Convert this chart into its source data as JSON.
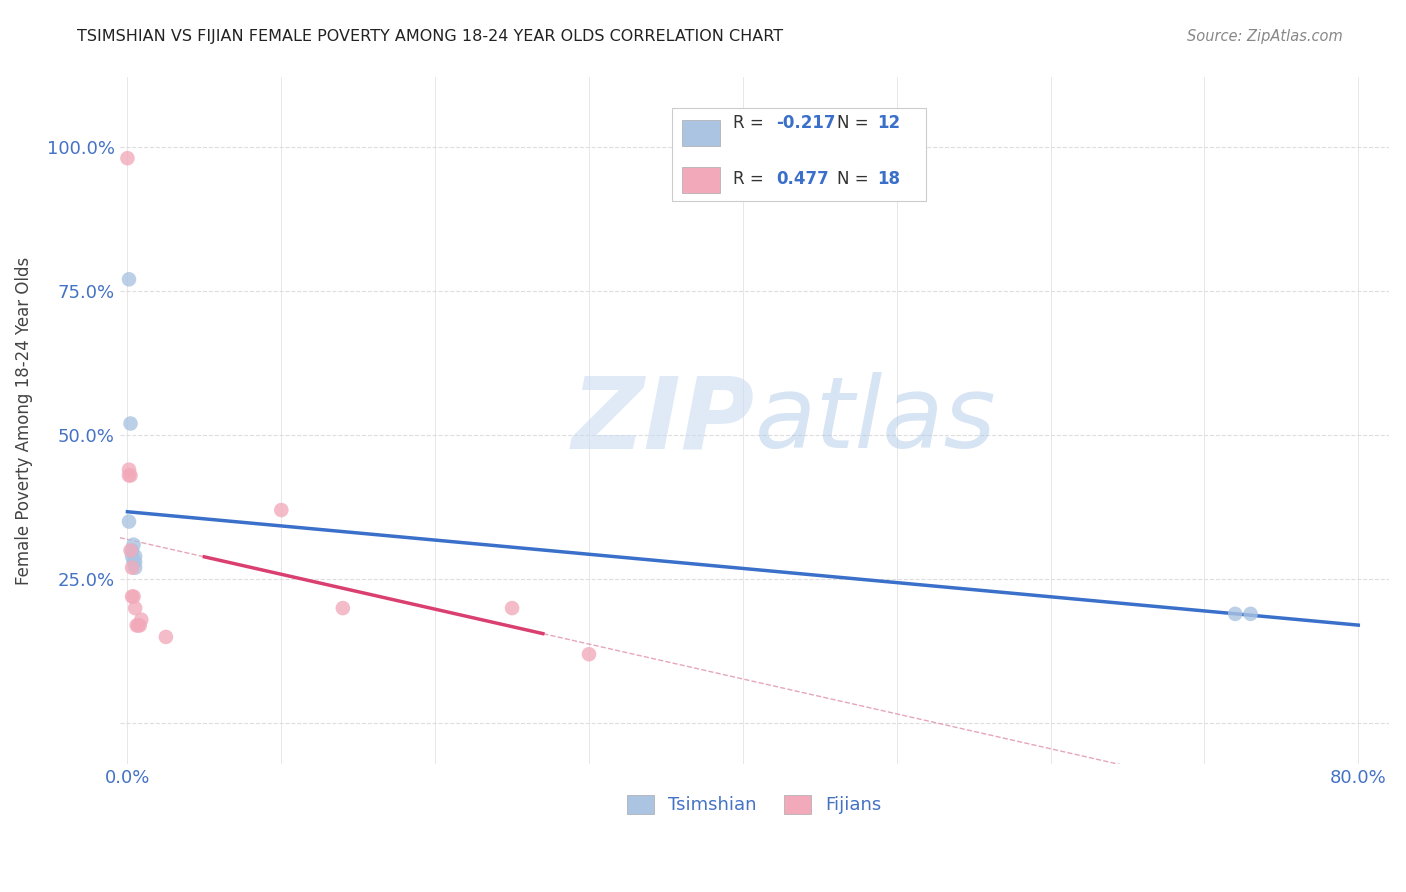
{
  "title": "TSIMSHIAN VS FIJIAN FEMALE POVERTY AMONG 18-24 YEAR OLDS CORRELATION CHART",
  "source": "Source: ZipAtlas.com",
  "ylabel_label": "Female Poverty Among 18-24 Year Olds",
  "xlim": [
    -0.005,
    0.82
  ],
  "ylim": [
    -0.07,
    1.12
  ],
  "xticks": [
    0.0,
    0.1,
    0.2,
    0.3,
    0.4,
    0.5,
    0.6,
    0.7,
    0.8
  ],
  "xticklabels": [
    "0.0%",
    "",
    "",
    "",
    "",
    "",
    "",
    "",
    "80.0%"
  ],
  "yticks": [
    0.0,
    0.25,
    0.5,
    0.75,
    1.0
  ],
  "yticklabels": [
    "",
    "25.0%",
    "50.0%",
    "75.0%",
    "100.0%"
  ],
  "tsimshian_color": "#aac4e2",
  "fijian_color": "#f2aabb",
  "tsimshian_line_color": "#3a6fca",
  "fijian_line_color": "#d94070",
  "fijian_dashed_color": "#e090a8",
  "r_tsimshian": -0.217,
  "n_tsimshian": 12,
  "r_fijian": 0.477,
  "n_fijian": 18,
  "tsimshian_x": [
    0.001,
    0.001,
    0.002,
    0.003,
    0.003,
    0.004,
    0.004,
    0.005,
    0.005,
    0.005,
    0.72,
    0.73
  ],
  "tsimshian_y": [
    0.77,
    0.35,
    0.52,
    0.3,
    0.29,
    0.31,
    0.28,
    0.29,
    0.27,
    0.28,
    0.19,
    0.19
  ],
  "fijian_x": [
    0.0,
    0.001,
    0.001,
    0.002,
    0.002,
    0.003,
    0.003,
    0.004,
    0.005,
    0.006,
    0.007,
    0.008,
    0.009,
    0.025,
    0.1,
    0.14,
    0.25,
    0.3
  ],
  "fijian_y": [
    0.98,
    0.44,
    0.43,
    0.43,
    0.3,
    0.27,
    0.22,
    0.22,
    0.2,
    0.17,
    0.17,
    0.17,
    0.18,
    0.15,
    0.37,
    0.2,
    0.2,
    0.12
  ],
  "watermark_zip": "ZIP",
  "watermark_atlas": "atlas",
  "background_color": "#ffffff",
  "grid_color": "#dddddd",
  "tick_color": "#4472c4",
  "marker_size": 110
}
